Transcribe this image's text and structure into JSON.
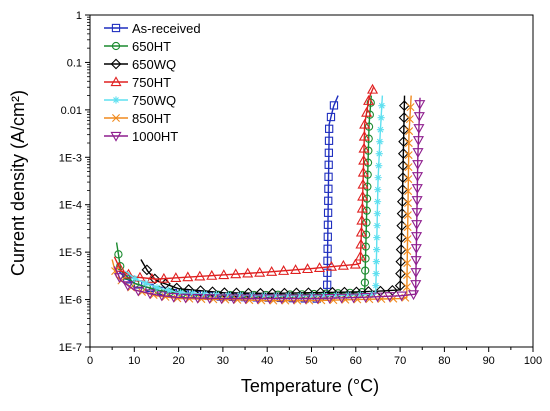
{
  "chart_data": {
    "type": "line",
    "xlabel": "Temperature (°C)",
    "ylabel": "Current density (A/cm²)",
    "xlim": [
      0,
      100
    ],
    "ylim_log10": [
      -7,
      0
    ],
    "y_scale": "log",
    "grid": false,
    "legend_position": "top-left",
    "x_ticks": [
      0,
      10,
      20,
      30,
      40,
      50,
      60,
      70,
      80,
      90,
      100
    ],
    "x_tick_labels": [
      "0",
      "10",
      "20",
      "30",
      "40",
      "50",
      "60",
      "70",
      "80",
      "90",
      "100"
    ],
    "y_tick_values": [
      1e-07,
      1e-06,
      1e-05,
      0.0001,
      0.001,
      0.01,
      0.1,
      1
    ],
    "y_tick_labels": [
      "1E-7",
      "1E-6",
      "1E-5",
      "1E-4",
      "1E-3",
      "0.01",
      "0.1",
      "1"
    ],
    "series": [
      {
        "name": "As-received",
        "color": "#1f2fbf",
        "marker": "square",
        "points": [
          [
            6.5,
            4e-06
          ],
          [
            8,
            2.8e-06
          ],
          [
            10,
            2.2e-06
          ],
          [
            15,
            1.6e-06
          ],
          [
            20,
            1.3e-06
          ],
          [
            30,
            1.15e-06
          ],
          [
            40,
            1.1e-06
          ],
          [
            50,
            1.05e-06
          ],
          [
            53.5,
            1.05e-06
          ],
          [
            54,
            0.005
          ],
          [
            55,
            0.012
          ],
          [
            56,
            0.02
          ]
        ]
      },
      {
        "name": "650HT",
        "color": "#1a8a2e",
        "marker": "circle",
        "points": [
          [
            6,
            1.6e-05
          ],
          [
            7,
            4e-06
          ],
          [
            10,
            2.2e-06
          ],
          [
            15,
            1.6e-06
          ],
          [
            20,
            1.35e-06
          ],
          [
            30,
            1.25e-06
          ],
          [
            40,
            1.25e-06
          ],
          [
            50,
            1.3e-06
          ],
          [
            60,
            1.4e-06
          ],
          [
            62,
            1.45e-06
          ],
          [
            62.5,
            0.0001
          ],
          [
            63,
            0.005
          ],
          [
            63.5,
            0.02
          ]
        ]
      },
      {
        "name": "650WQ",
        "color": "#000000",
        "marker": "diamond",
        "points": [
          [
            11.5,
            7e-06
          ],
          [
            13,
            4e-06
          ],
          [
            15,
            2.5e-06
          ],
          [
            20,
            1.7e-06
          ],
          [
            30,
            1.4e-06
          ],
          [
            40,
            1.35e-06
          ],
          [
            50,
            1.4e-06
          ],
          [
            60,
            1.45e-06
          ],
          [
            65,
            1.5e-06
          ],
          [
            70,
            1.6e-06
          ],
          [
            70.5,
            0.0001
          ],
          [
            71,
            0.02
          ]
        ]
      },
      {
        "name": "750HT",
        "color": "#e02020",
        "marker": "triangle-up",
        "points": [
          [
            5.5,
            8e-06
          ],
          [
            7,
            4e-06
          ],
          [
            10,
            3e-06
          ],
          [
            15,
            2.7e-06
          ],
          [
            20,
            2.9e-06
          ],
          [
            30,
            3.3e-06
          ],
          [
            40,
            3.8e-06
          ],
          [
            50,
            4.5e-06
          ],
          [
            55,
            5e-06
          ],
          [
            60,
            5.5e-06
          ],
          [
            61,
            5.8e-06
          ],
          [
            61.5,
            0.0001
          ],
          [
            62,
            0.005
          ],
          [
            63,
            0.018
          ],
          [
            64,
            0.03
          ]
        ]
      },
      {
        "name": "750WQ",
        "color": "#5fe0f0",
        "marker": "star",
        "points": [
          [
            8,
            4e-06
          ],
          [
            10,
            2.8e-06
          ],
          [
            15,
            1.8e-06
          ],
          [
            20,
            1.4e-06
          ],
          [
            30,
            1.25e-06
          ],
          [
            40,
            1.2e-06
          ],
          [
            50,
            1.2e-06
          ],
          [
            60,
            1.25e-06
          ],
          [
            64.5,
            1.3e-06
          ],
          [
            65,
            0.0003
          ],
          [
            65.5,
            0.003
          ],
          [
            66,
            0.02
          ]
        ]
      },
      {
        "name": "850HT",
        "color": "#f08a1e",
        "marker": "x",
        "points": [
          [
            5,
            7e-06
          ],
          [
            6,
            3e-06
          ],
          [
            10,
            1.6e-06
          ],
          [
            15,
            1.2e-06
          ],
          [
            20,
            1.05e-06
          ],
          [
            30,
            1e-06
          ],
          [
            40,
            9.5e-07
          ],
          [
            50,
            9.5e-07
          ],
          [
            60,
            1e-06
          ],
          [
            70,
            1.05e-06
          ],
          [
            71.5,
            1.1e-06
          ],
          [
            72,
            0.003
          ],
          [
            72.5,
            0.02
          ]
        ]
      },
      {
        "name": "1000HT",
        "color": "#8e1e8e",
        "marker": "triangle-down",
        "points": [
          [
            5.5,
            5e-06
          ],
          [
            7,
            2.5e-06
          ],
          [
            10,
            1.6e-06
          ],
          [
            15,
            1.25e-06
          ],
          [
            20,
            1.1e-06
          ],
          [
            30,
            1.05e-06
          ],
          [
            40,
            1.05e-06
          ],
          [
            50,
            1.05e-06
          ],
          [
            60,
            1.1e-06
          ],
          [
            70,
            1.2e-06
          ],
          [
            73.5,
            1.3e-06
          ],
          [
            74,
            0.001
          ],
          [
            74.5,
            0.018
          ]
        ]
      }
    ]
  }
}
